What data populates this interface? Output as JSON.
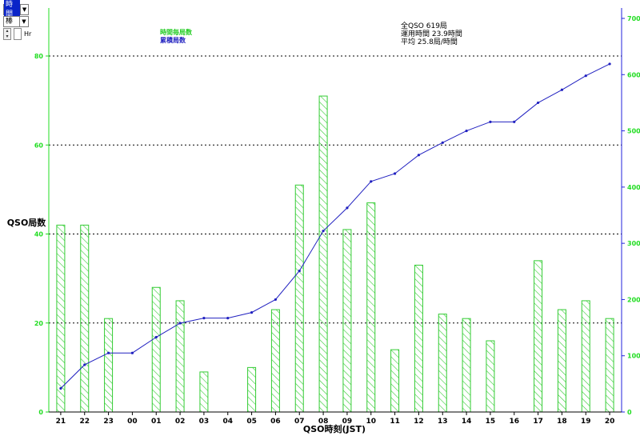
{
  "controls": {
    "kind_select": "時間",
    "style_select": "棒",
    "spin_unit": "Hr"
  },
  "legend": {
    "hourly_label": "時間毎局数",
    "cumulative_label": "累積局数"
  },
  "summary": {
    "line1": "全QSO 619局",
    "line2": "運用時間 23.9時間",
    "line3": "平均 25.8局/時間"
  },
  "colors": {
    "bar": "#33cc33",
    "left_axis": "#22dd22",
    "line": "#2020c0",
    "right_axis": "#2222dd",
    "grid": "#000000"
  },
  "chart_data": {
    "type": "bar",
    "xlabel": "QSO時刻(JST)",
    "ylabel": "QSO局数",
    "categories": [
      "21",
      "22",
      "23",
      "00",
      "01",
      "02",
      "03",
      "04",
      "05",
      "06",
      "07",
      "08",
      "09",
      "10",
      "11",
      "12",
      "13",
      "14",
      "15",
      "16",
      "17",
      "18",
      "19",
      "20"
    ],
    "series": [
      {
        "type": "bar",
        "axis": "left",
        "values": [
          42,
          42,
          21,
          0,
          28,
          25,
          9,
          0,
          10,
          23,
          51,
          71,
          41,
          47,
          14,
          33,
          22,
          21,
          16,
          0,
          34,
          23,
          25,
          21
        ]
      },
      {
        "type": "line",
        "axis": "right",
        "values": [
          42,
          84,
          105,
          105,
          133,
          158,
          167,
          167,
          177,
          200,
          251,
          322,
          363,
          410,
          424,
          457,
          479,
          500,
          516,
          516,
          550,
          573,
          598,
          619
        ]
      }
    ],
    "ylim": [
      0,
      80
    ],
    "y_ticks": [
      0,
      20,
      40,
      60,
      80
    ],
    "y2lim": [
      0,
      700
    ],
    "y2_ticks": [
      0,
      100,
      200,
      300,
      400,
      500,
      600,
      700
    ],
    "grid": "horizontal dotted at 20, 40, 60, 80",
    "legend_position": "top-left"
  }
}
